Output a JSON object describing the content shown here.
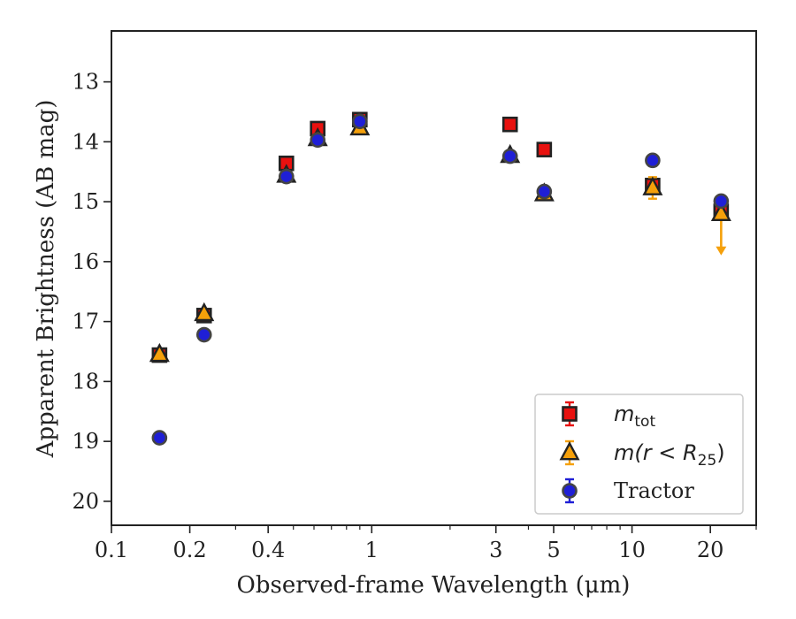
{
  "chart_data": {
    "type": "scatter",
    "xlabel": "Observed-frame Wavelength (μm)",
    "ylabel": "Apparent Brightness (AB mag)",
    "xscale": "log",
    "xlim": [
      0.1,
      30
    ],
    "ylim": [
      20.4,
      12.15
    ],
    "y_inverted": true,
    "x_ticks": [
      0.1,
      0.2,
      0.4,
      1,
      3,
      5,
      10,
      20
    ],
    "x_tick_labels": [
      "0.1",
      "0.2",
      "0.4",
      "1",
      "3",
      "5",
      "10",
      "20"
    ],
    "y_ticks": [
      13,
      14,
      15,
      16,
      17,
      18,
      19,
      20
    ],
    "y_tick_labels": [
      "13",
      "14",
      "15",
      "16",
      "17",
      "18",
      "19",
      "20"
    ],
    "grid": false,
    "legend_position": "lower-right",
    "series": [
      {
        "name": "m_tot",
        "legend_parts": [
          "m",
          "tot"
        ],
        "marker": "square",
        "color": "#e8110f",
        "points": [
          {
            "x": 0.153,
            "y": 17.56
          },
          {
            "x": 0.227,
            "y": 16.9
          },
          {
            "x": 0.47,
            "y": 14.36
          },
          {
            "x": 0.62,
            "y": 13.78
          },
          {
            "x": 0.9,
            "y": 13.63
          },
          {
            "x": 3.4,
            "y": 13.71
          },
          {
            "x": 4.6,
            "y": 14.13
          },
          {
            "x": 12.0,
            "y": 14.73
          },
          {
            "x": 22.0,
            "y": 15.16
          }
        ]
      },
      {
        "name": "m(r < R_25)",
        "legend_parts": [
          "m(r < R",
          "25",
          ")"
        ],
        "marker": "triangle",
        "color": "#f5a00a",
        "points": [
          {
            "x": 0.153,
            "y": 17.55
          },
          {
            "x": 0.227,
            "y": 16.87
          },
          {
            "x": 0.47,
            "y": 14.56
          },
          {
            "x": 0.62,
            "y": 13.95
          },
          {
            "x": 0.9,
            "y": 13.77
          },
          {
            "x": 3.4,
            "y": 14.23
          },
          {
            "x": 4.6,
            "y": 14.87
          },
          {
            "x": 12.0,
            "y": 14.77,
            "yerr": 0.18
          },
          {
            "x": 22.0,
            "y": 15.2,
            "upper_limit": true,
            "arrow_to": 15.85
          }
        ]
      },
      {
        "name": "Tractor",
        "legend_parts": [
          "Tractor"
        ],
        "marker": "circle",
        "color": "#1f1fd6",
        "points": [
          {
            "x": 0.153,
            "y": 18.94
          },
          {
            "x": 0.227,
            "y": 17.22
          },
          {
            "x": 0.47,
            "y": 14.58
          },
          {
            "x": 0.62,
            "y": 13.97
          },
          {
            "x": 0.9,
            "y": 13.66
          },
          {
            "x": 3.4,
            "y": 14.24
          },
          {
            "x": 4.6,
            "y": 14.83
          },
          {
            "x": 12.0,
            "y": 14.31
          },
          {
            "x": 22.0,
            "y": 14.99
          }
        ]
      }
    ]
  }
}
